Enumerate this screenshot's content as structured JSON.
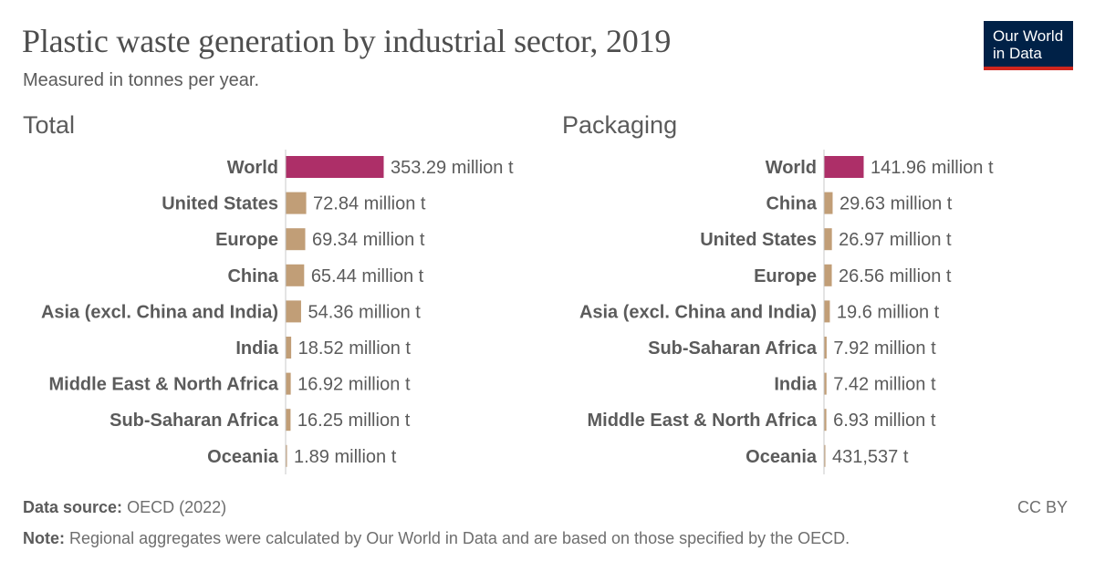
{
  "header": {
    "title": "Plastic waste generation by industrial sector, 2019",
    "subtitle": "Measured in tonnes per year.",
    "logo_line1": "Our World",
    "logo_line2": "in Data"
  },
  "colors": {
    "highlight": "#ad2f68",
    "bar": "#c19e77",
    "axis": "#c8c8c8",
    "label": "#5b5b5b"
  },
  "chart_data": [
    {
      "type": "bar",
      "orientation": "horizontal",
      "title": "Total",
      "unit": "tonnes",
      "categories": [
        "World",
        "United States",
        "Europe",
        "China",
        "Asia (excl. China and India)",
        "India",
        "Middle East & North Africa",
        "Sub-Saharan Africa",
        "Oceania"
      ],
      "values": [
        353290000,
        72840000,
        69340000,
        65440000,
        54360000,
        18520000,
        16920000,
        16250000,
        1890000
      ],
      "data_labels": [
        "353.29 million t",
        "72.84 million t",
        "69.34 million t",
        "65.44 million t",
        "54.36 million t",
        "18.52 million t",
        "16.92 million t",
        "16.25 million t",
        "1.89 million t"
      ]
    },
    {
      "type": "bar",
      "orientation": "horizontal",
      "title": "Packaging",
      "unit": "tonnes",
      "categories": [
        "World",
        "China",
        "United States",
        "Europe",
        "Asia (excl. China and India)",
        "Sub-Saharan Africa",
        "India",
        "Middle East & North Africa",
        "Oceania"
      ],
      "values": [
        141960000,
        29630000,
        26970000,
        26560000,
        19600000,
        7920000,
        7420000,
        6930000,
        431537
      ],
      "data_labels": [
        "141.96 million t",
        "29.63 million t",
        "26.97 million t",
        "26.56 million t",
        "19.6 million t",
        "7.92 million t",
        "7.42 million t",
        "6.93 million t",
        "431,537 t"
      ]
    }
  ],
  "footer": {
    "source_label": "Data source:",
    "source": "OECD (2022)",
    "note_label": "Note:",
    "note": "Regional aggregates were calculated by Our World in Data and are based on those specified by the OECD.",
    "license": "CC BY"
  }
}
